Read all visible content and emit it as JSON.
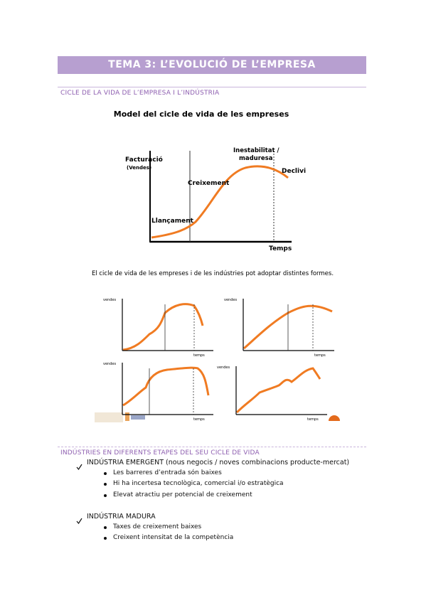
{
  "header": {
    "title": "TEMA 3: L’EVOLUCIÓ DE L’EMPRESA"
  },
  "section1": {
    "heading": "CICLE DE LA VIDA DE L’EMPRESA I L’INDÚSTRIA",
    "figure": {
      "title": "Model del cicle de vida de les empreses",
      "y_label": "Facturació",
      "y_sublabel": "(Vendes)",
      "stages": [
        "Llançament",
        "Creixement",
        "Inestabilitat /",
        "maduresa",
        "Declivi"
      ],
      "x_label": "Temps"
    },
    "caption": "El cicle de vida de les empreses i de les indústries pot adoptar distintes formes.",
    "small_charts": {
      "y_label": "vendes",
      "x_label": "temps"
    }
  },
  "section2": {
    "heading": "INDÚSTRIES EN DIFERENTS ETAPES DEL SEU CICLE DE VIDA",
    "items": [
      {
        "label": "INDÚSTRIA EMERGENT (nous negocis / noves combinacions producte-mercat)",
        "bullets": [
          "Les barreres d’entrada són baixes",
          "Hi ha incertesa tecnològica, comercial i/o estratègica",
          "Elevat atractiu per potencial de creixement"
        ]
      },
      {
        "label": "INDÚSTRIA MADURA",
        "bullets": [
          "Taxes de creixement baixes",
          "Creixent intensitat de la competència"
        ]
      }
    ]
  }
}
